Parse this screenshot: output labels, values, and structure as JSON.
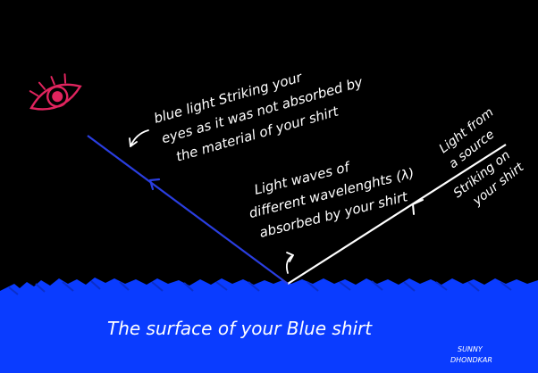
{
  "labels": {
    "eye_note": [
      "blue light Striking your",
      "eyes as it was not absorbed by",
      "the material of your shirt"
    ],
    "absorbed_note": [
      "Light waves of",
      "different wavelenghts (λ)",
      "absorbed by your shirt"
    ],
    "source_note": [
      "Light from",
      "a source"
    ],
    "striking_note": [
      "Striking on",
      "your shirt"
    ],
    "surface_label": "The surface of your Blue shirt",
    "signature": [
      "SUNNY",
      "DHONDKAR"
    ]
  },
  "colors": {
    "background": "#000000",
    "shirt_surface": "#0a3cff",
    "reflected_ray": "#2a3ee0",
    "incident_ray": "#ffffff",
    "eye": "#e0245e",
    "text": "#ffffff"
  },
  "icons": {
    "eye": "eye-icon",
    "arrow": "curved-arrow-icon"
  }
}
